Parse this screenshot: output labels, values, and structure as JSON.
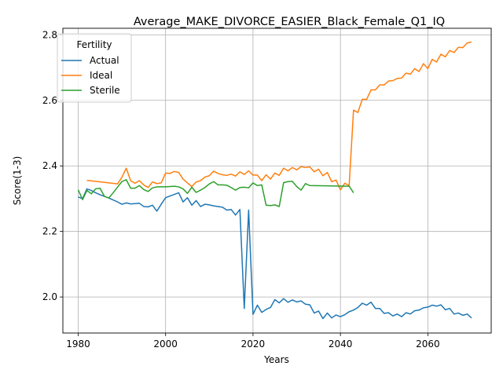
{
  "chart_data": {
    "type": "line",
    "title": "Average_MAKE_DIVORCE_EASIER_Black_Female_Q1_IQ",
    "xlabel": "Years",
    "ylabel": "Score(1-3)",
    "xlim": [
      1976.5,
      2074.5
    ],
    "ylim": [
      1.89,
      2.82
    ],
    "xticks": [
      1980,
      2000,
      2020,
      2040,
      2060
    ],
    "yticks": [
      2.0,
      2.2,
      2.4,
      2.6,
      2.8
    ],
    "ytick_labels": [
      "2.0",
      "2.2",
      "2.4",
      "2.6",
      "2.8"
    ],
    "grid": true,
    "legend": {
      "title": "Fertility",
      "placement": "upper-left"
    },
    "series": [
      {
        "name": "Actual",
        "color": "#1f77b4",
        "points": [
          [
            1980,
            2.305
          ],
          [
            1981,
            2.3
          ],
          [
            1982,
            2.33
          ],
          [
            1983,
            2.325
          ],
          [
            1984,
            2.318
          ],
          [
            1985,
            2.312
          ],
          [
            1986,
            2.307
          ],
          [
            1987,
            2.302
          ],
          [
            1988,
            2.296
          ],
          [
            1989,
            2.29
          ],
          [
            1990,
            2.283
          ],
          [
            1991,
            2.287
          ],
          [
            1992,
            2.284
          ],
          [
            1993,
            2.285
          ],
          [
            1994,
            2.286
          ],
          [
            1995,
            2.276
          ],
          [
            1996,
            2.275
          ],
          [
            1997,
            2.28
          ],
          [
            1998,
            2.262
          ],
          [
            1999,
            2.283
          ],
          [
            2000,
            2.303
          ],
          [
            2001,
            2.308
          ],
          [
            2002,
            2.313
          ],
          [
            2003,
            2.318
          ],
          [
            2004,
            2.29
          ],
          [
            2005,
            2.303
          ],
          [
            2006,
            2.28
          ],
          [
            2007,
            2.294
          ],
          [
            2008,
            2.276
          ],
          [
            2009,
            2.283
          ],
          [
            2010,
            2.281
          ],
          [
            2011,
            2.278
          ],
          [
            2012,
            2.276
          ],
          [
            2013,
            2.274
          ],
          [
            2014,
            2.265
          ],
          [
            2015,
            2.267
          ],
          [
            2016,
            2.25
          ],
          [
            2017,
            2.267
          ],
          [
            2018,
            1.965
          ],
          [
            2019,
            2.265
          ],
          [
            2020,
            1.947
          ],
          [
            2021,
            1.975
          ],
          [
            2022,
            1.953
          ],
          [
            2023,
            1.962
          ],
          [
            2024,
            1.968
          ],
          [
            2025,
            1.992
          ],
          [
            2026,
            1.982
          ],
          [
            2027,
            1.995
          ],
          [
            2028,
            1.984
          ],
          [
            2029,
            1.991
          ],
          [
            2030,
            1.985
          ],
          [
            2031,
            1.988
          ],
          [
            2032,
            1.978
          ],
          [
            2033,
            1.976
          ],
          [
            2034,
            1.951
          ],
          [
            2035,
            1.957
          ],
          [
            2036,
            1.934
          ],
          [
            2037,
            1.951
          ],
          [
            2038,
            1.936
          ],
          [
            2039,
            1.945
          ],
          [
            2040,
            1.94
          ],
          [
            2041,
            1.946
          ],
          [
            2042,
            1.955
          ],
          [
            2043,
            1.96
          ],
          [
            2044,
            1.968
          ],
          [
            2045,
            1.981
          ],
          [
            2046,
            1.975
          ],
          [
            2047,
            1.984
          ],
          [
            2048,
            1.965
          ],
          [
            2049,
            1.965
          ],
          [
            2050,
            1.95
          ],
          [
            2051,
            1.952
          ],
          [
            2052,
            1.942
          ],
          [
            2053,
            1.948
          ],
          [
            2054,
            1.94
          ],
          [
            2055,
            1.952
          ],
          [
            2056,
            1.948
          ],
          [
            2057,
            1.958
          ],
          [
            2058,
            1.96
          ],
          [
            2059,
            1.967
          ],
          [
            2060,
            1.969
          ],
          [
            2061,
            1.975
          ],
          [
            2062,
            1.972
          ],
          [
            2063,
            1.976
          ],
          [
            2064,
            1.961
          ],
          [
            2065,
            1.965
          ],
          [
            2066,
            1.948
          ],
          [
            2067,
            1.951
          ],
          [
            2068,
            1.944
          ],
          [
            2069,
            1.948
          ],
          [
            2070,
            1.936
          ]
        ]
      },
      {
        "name": "Ideal",
        "color": "#ff7f0e",
        "points": [
          [
            1982,
            2.356
          ],
          [
            1989,
            2.345
          ],
          [
            1990,
            2.365
          ],
          [
            1991,
            2.393
          ],
          [
            1992,
            2.355
          ],
          [
            1993,
            2.347
          ],
          [
            1994,
            2.355
          ],
          [
            1995,
            2.342
          ],
          [
            1996,
            2.334
          ],
          [
            1997,
            2.351
          ],
          [
            1998,
            2.346
          ],
          [
            1999,
            2.348
          ],
          [
            2000,
            2.378
          ],
          [
            2001,
            2.377
          ],
          [
            2002,
            2.383
          ],
          [
            2003,
            2.38
          ],
          [
            2004,
            2.36
          ],
          [
            2005,
            2.348
          ],
          [
            2006,
            2.337
          ],
          [
            2007,
            2.351
          ],
          [
            2008,
            2.355
          ],
          [
            2009,
            2.366
          ],
          [
            2010,
            2.37
          ],
          [
            2011,
            2.384
          ],
          [
            2012,
            2.377
          ],
          [
            2013,
            2.373
          ],
          [
            2014,
            2.371
          ],
          [
            2015,
            2.375
          ],
          [
            2016,
            2.369
          ],
          [
            2017,
            2.382
          ],
          [
            2018,
            2.374
          ],
          [
            2019,
            2.385
          ],
          [
            2020,
            2.372
          ],
          [
            2021,
            2.372
          ],
          [
            2022,
            2.355
          ],
          [
            2023,
            2.373
          ],
          [
            2024,
            2.36
          ],
          [
            2025,
            2.378
          ],
          [
            2026,
            2.371
          ],
          [
            2027,
            2.393
          ],
          [
            2028,
            2.385
          ],
          [
            2029,
            2.395
          ],
          [
            2030,
            2.388
          ],
          [
            2031,
            2.398
          ],
          [
            2032,
            2.395
          ],
          [
            2033,
            2.397
          ],
          [
            2034,
            2.382
          ],
          [
            2035,
            2.39
          ],
          [
            2036,
            2.37
          ],
          [
            2037,
            2.38
          ],
          [
            2038,
            2.352
          ],
          [
            2039,
            2.357
          ],
          [
            2040,
            2.327
          ],
          [
            2041,
            2.347
          ],
          [
            2042,
            2.34
          ],
          [
            2043,
            2.57
          ],
          [
            2044,
            2.563
          ],
          [
            2045,
            2.603
          ],
          [
            2046,
            2.603
          ],
          [
            2047,
            2.632
          ],
          [
            2048,
            2.632
          ],
          [
            2049,
            2.647
          ],
          [
            2050,
            2.647
          ],
          [
            2051,
            2.659
          ],
          [
            2052,
            2.66
          ],
          [
            2053,
            2.667
          ],
          [
            2054,
            2.668
          ],
          [
            2055,
            2.683
          ],
          [
            2056,
            2.68
          ],
          [
            2057,
            2.697
          ],
          [
            2058,
            2.688
          ],
          [
            2059,
            2.712
          ],
          [
            2060,
            2.697
          ],
          [
            2061,
            2.725
          ],
          [
            2062,
            2.717
          ],
          [
            2063,
            2.741
          ],
          [
            2064,
            2.733
          ],
          [
            2065,
            2.752
          ],
          [
            2066,
            2.746
          ],
          [
            2067,
            2.762
          ],
          [
            2068,
            2.761
          ],
          [
            2069,
            2.775
          ],
          [
            2070,
            2.778
          ]
        ]
      },
      {
        "name": "Sterile",
        "color": "#2ca02c",
        "points": [
          [
            1980,
            2.327
          ],
          [
            1981,
            2.297
          ],
          [
            1982,
            2.325
          ],
          [
            1983,
            2.315
          ],
          [
            1984,
            2.33
          ],
          [
            1985,
            2.332
          ],
          [
            1986,
            2.307
          ],
          [
            1987,
            2.302
          ],
          [
            1988,
            2.318
          ],
          [
            1989,
            2.335
          ],
          [
            1990,
            2.352
          ],
          [
            1991,
            2.358
          ],
          [
            1992,
            2.332
          ],
          [
            1993,
            2.332
          ],
          [
            1994,
            2.34
          ],
          [
            1995,
            2.328
          ],
          [
            1996,
            2.322
          ],
          [
            1997,
            2.333
          ],
          [
            1998,
            2.336
          ],
          [
            1999,
            2.336
          ],
          [
            2000,
            2.336
          ],
          [
            2001,
            2.337
          ],
          [
            2002,
            2.338
          ],
          [
            2003,
            2.336
          ],
          [
            2004,
            2.33
          ],
          [
            2005,
            2.316
          ],
          [
            2006,
            2.335
          ],
          [
            2007,
            2.319
          ],
          [
            2008,
            2.326
          ],
          [
            2009,
            2.334
          ],
          [
            2010,
            2.345
          ],
          [
            2011,
            2.352
          ],
          [
            2012,
            2.342
          ],
          [
            2013,
            2.342
          ],
          [
            2014,
            2.341
          ],
          [
            2015,
            2.334
          ],
          [
            2016,
            2.326
          ],
          [
            2017,
            2.334
          ],
          [
            2018,
            2.335
          ],
          [
            2019,
            2.333
          ],
          [
            2020,
            2.348
          ],
          [
            2021,
            2.34
          ],
          [
            2022,
            2.342
          ],
          [
            2023,
            2.28
          ],
          [
            2024,
            2.279
          ],
          [
            2025,
            2.281
          ],
          [
            2026,
            2.276
          ],
          [
            2027,
            2.349
          ],
          [
            2028,
            2.352
          ],
          [
            2029,
            2.353
          ],
          [
            2030,
            2.337
          ],
          [
            2031,
            2.326
          ],
          [
            2032,
            2.346
          ],
          [
            2033,
            2.34
          ],
          [
            2042,
            2.338
          ],
          [
            2043,
            2.318
          ]
        ]
      }
    ]
  }
}
